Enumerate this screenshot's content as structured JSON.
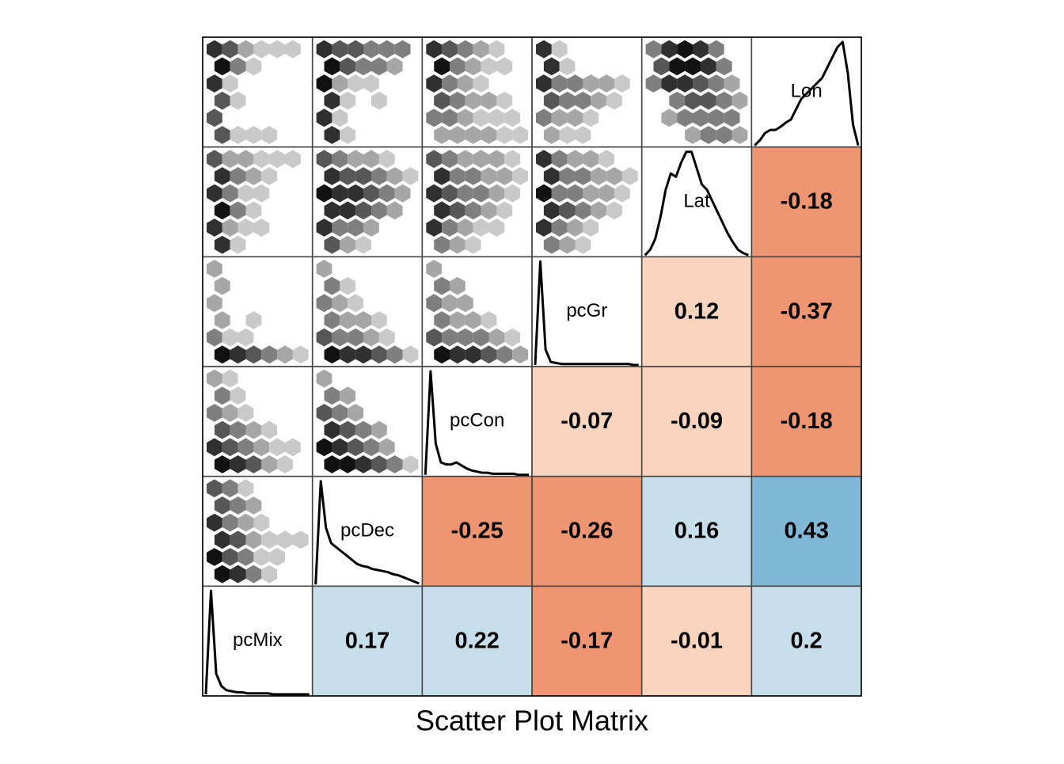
{
  "chart_data": {
    "type": "scatter_matrix",
    "title": "Scatter Plot Matrix",
    "variables": [
      "pcMix",
      "pcDec",
      "pcCon",
      "pcGr",
      "Lat",
      "Lon"
    ],
    "correlations": [
      [
        null,
        0.17,
        0.22,
        -0.17,
        -0.01,
        0.2
      ],
      [
        null,
        null,
        -0.25,
        -0.26,
        0.16,
        0.43
      ],
      [
        null,
        null,
        null,
        -0.07,
        -0.09,
        -0.18
      ],
      [
        null,
        null,
        null,
        null,
        0.12,
        -0.37
      ],
      [
        null,
        null,
        null,
        null,
        null,
        -0.18
      ]
    ],
    "correlation_colors": [
      [
        null,
        "#c7deeb",
        "#c7deeb",
        "#ef9571",
        "#fbd4bd",
        "#c7deeb"
      ],
      [
        null,
        null,
        "#ef9571",
        "#ef9571",
        "#c7deeb",
        "#80b8d7"
      ],
      [
        null,
        null,
        null,
        "#fbd4bd",
        "#fbd4bd",
        "#ef9571"
      ],
      [
        null,
        null,
        null,
        null,
        "#fbd4bd",
        "#ef9571"
      ],
      [
        null,
        null,
        null,
        null,
        null,
        "#ef9571"
      ]
    ],
    "hexbins": [
      [
        null,
        null,
        null,
        null,
        null,
        null
      ],
      [
        [
          [
            4,
            3,
            1,
            0,
            0,
            0
          ],
          [
            4,
            3,
            2,
            0,
            0,
            0
          ],
          [
            5,
            3,
            2,
            1,
            0,
            0
          ],
          [
            5,
            4,
            2,
            1,
            1,
            1
          ],
          [
            6,
            4,
            3,
            1,
            1,
            0
          ],
          [
            6,
            5,
            3,
            1,
            0,
            0
          ]
        ],
        null,
        null,
        null,
        null,
        null
      ],
      [
        [
          [
            2,
            1,
            0,
            0,
            0,
            0
          ],
          [
            3,
            1,
            0,
            0,
            0,
            0
          ],
          [
            3,
            2,
            1,
            0,
            0,
            0
          ],
          [
            4,
            3,
            2,
            1,
            0,
            0
          ],
          [
            5,
            4,
            3,
            2,
            1,
            1
          ],
          [
            6,
            5,
            4,
            2,
            1,
            0
          ]
        ],
        [
          [
            2,
            0,
            0,
            0,
            0,
            0
          ],
          [
            3,
            2,
            0,
            0,
            0,
            0
          ],
          [
            4,
            3,
            2,
            0,
            0,
            0
          ],
          [
            5,
            4,
            3,
            2,
            0,
            0
          ],
          [
            6,
            5,
            4,
            3,
            2,
            0
          ],
          [
            6,
            6,
            5,
            4,
            3,
            1
          ]
        ],
        null,
        null,
        null,
        null
      ],
      [
        [
          [
            2,
            0,
            0,
            0,
            0,
            0
          ],
          [
            2,
            0,
            0,
            0,
            0,
            0
          ],
          [
            2,
            0,
            0,
            0,
            0,
            0
          ],
          [
            2,
            0,
            1,
            0,
            0,
            0
          ],
          [
            3,
            1,
            1,
            0,
            0,
            0
          ],
          [
            6,
            5,
            4,
            3,
            2,
            1
          ]
        ],
        [
          [
            2,
            0,
            0,
            0,
            0,
            0
          ],
          [
            3,
            1,
            0,
            0,
            0,
            0
          ],
          [
            3,
            2,
            1,
            0,
            0,
            0
          ],
          [
            3,
            2,
            2,
            1,
            0,
            0
          ],
          [
            4,
            3,
            3,
            2,
            1,
            0
          ],
          [
            6,
            5,
            5,
            4,
            3,
            1
          ]
        ],
        [
          [
            2,
            0,
            0,
            0,
            0,
            0
          ],
          [
            3,
            2,
            0,
            0,
            0,
            0
          ],
          [
            3,
            2,
            2,
            0,
            0,
            0
          ],
          [
            3,
            2,
            2,
            1,
            0,
            0
          ],
          [
            4,
            3,
            3,
            3,
            2,
            1
          ],
          [
            6,
            5,
            5,
            4,
            3,
            2
          ]
        ],
        null,
        null,
        null
      ],
      [
        [
          [
            4,
            2,
            2,
            1,
            1,
            1
          ],
          [
            5,
            3,
            2,
            1,
            0,
            0
          ],
          [
            5,
            3,
            1,
            1,
            0,
            0
          ],
          [
            6,
            3,
            1,
            0,
            0,
            0
          ],
          [
            5,
            2,
            1,
            1,
            0,
            0
          ],
          [
            5,
            1,
            0,
            0,
            0,
            0
          ]
        ],
        [
          [
            4,
            3,
            2,
            2,
            1,
            0
          ],
          [
            5,
            4,
            4,
            3,
            2,
            1
          ],
          [
            6,
            5,
            5,
            4,
            3,
            2
          ],
          [
            5,
            5,
            4,
            3,
            2,
            0
          ],
          [
            5,
            3,
            3,
            2,
            0,
            0
          ],
          [
            4,
            2,
            1,
            0,
            0,
            0
          ]
        ],
        [
          [
            4,
            3,
            2,
            2,
            2,
            1
          ],
          [
            5,
            3,
            3,
            2,
            2,
            1
          ],
          [
            5,
            4,
            3,
            3,
            2,
            1
          ],
          [
            5,
            4,
            3,
            2,
            1,
            0
          ],
          [
            5,
            3,
            2,
            1,
            1,
            0
          ],
          [
            3,
            2,
            1,
            0,
            0,
            0
          ]
        ],
        [
          [
            5,
            3,
            2,
            2,
            1,
            0
          ],
          [
            5,
            3,
            3,
            2,
            2,
            1
          ],
          [
            6,
            3,
            3,
            2,
            2,
            1
          ],
          [
            5,
            4,
            3,
            2,
            1,
            0
          ],
          [
            5,
            3,
            2,
            1,
            0,
            0
          ],
          [
            3,
            2,
            1,
            0,
            0,
            0
          ]
        ],
        null,
        null
      ],
      [
        [
          [
            5,
            4,
            2,
            1,
            1,
            1
          ],
          [
            6,
            3,
            1,
            0,
            0,
            0
          ],
          [
            5,
            1,
            0,
            0,
            0,
            0
          ],
          [
            4,
            1,
            0,
            0,
            0,
            0
          ],
          [
            4,
            0,
            0,
            0,
            0,
            0
          ],
          [
            4,
            1,
            1,
            1,
            0,
            0
          ]
        ],
        [
          [
            5,
            4,
            4,
            3,
            3,
            3
          ],
          [
            6,
            4,
            3,
            3,
            2,
            0
          ],
          [
            6,
            2,
            1,
            1,
            0,
            0
          ],
          [
            5,
            1,
            0,
            1,
            0,
            0
          ],
          [
            5,
            1,
            0,
            0,
            0,
            0
          ],
          [
            5,
            1,
            0,
            0,
            0,
            0
          ]
        ],
        [
          [
            5,
            4,
            3,
            2,
            1,
            0
          ],
          [
            6,
            3,
            2,
            1,
            1,
            0
          ],
          [
            5,
            3,
            2,
            1,
            0,
            0
          ],
          [
            4,
            3,
            2,
            2,
            1,
            0
          ],
          [
            3,
            3,
            2,
            1,
            1,
            1
          ],
          [
            2,
            2,
            2,
            2,
            1,
            1
          ]
        ],
        [
          [
            5,
            1,
            0,
            0,
            0,
            0
          ],
          [
            5,
            1,
            0,
            0,
            0,
            0
          ],
          [
            5,
            3,
            3,
            2,
            2,
            1
          ],
          [
            4,
            3,
            3,
            2,
            1,
            0
          ],
          [
            3,
            2,
            2,
            1,
            0,
            0
          ],
          [
            2,
            1,
            1,
            0,
            0,
            0
          ]
        ],
        [
          [
            3,
            5,
            6,
            5,
            3,
            0
          ],
          [
            4,
            6,
            6,
            5,
            3,
            0
          ],
          [
            3,
            5,
            5,
            4,
            3,
            2
          ],
          [
            0,
            3,
            4,
            4,
            3,
            2
          ],
          [
            0,
            2,
            3,
            3,
            3,
            3
          ],
          [
            0,
            0,
            2,
            3,
            3,
            2
          ]
        ],
        null
      ]
    ],
    "densities": [
      [
        0,
        100,
        20,
        8,
        4,
        3,
        2,
        2,
        1,
        1,
        1,
        1,
        1,
        0,
        0,
        0,
        0,
        0,
        0,
        0,
        0
      ],
      [
        0,
        100,
        55,
        40,
        36,
        32,
        28,
        24,
        20,
        18,
        17,
        15,
        14,
        13,
        12,
        10,
        9,
        7,
        5,
        3,
        1
      ],
      [
        0,
        100,
        30,
        12,
        10,
        10,
        12,
        9,
        6,
        4,
        3,
        2,
        2,
        1,
        1,
        1,
        1,
        1,
        0,
        0,
        0
      ],
      [
        0,
        100,
        15,
        3,
        2,
        1,
        1,
        1,
        1,
        1,
        1,
        1,
        1,
        1,
        1,
        1,
        1,
        1,
        1,
        0,
        0
      ],
      [
        0,
        5,
        15,
        35,
        60,
        75,
        72,
        85,
        95,
        95,
        80,
        65,
        60,
        50,
        40,
        30,
        20,
        12,
        5,
        2,
        0
      ],
      [
        0,
        5,
        12,
        15,
        15,
        18,
        22,
        25,
        35,
        45,
        50,
        55,
        60,
        65,
        75,
        85,
        95,
        100,
        70,
        20,
        0
      ]
    ]
  }
}
